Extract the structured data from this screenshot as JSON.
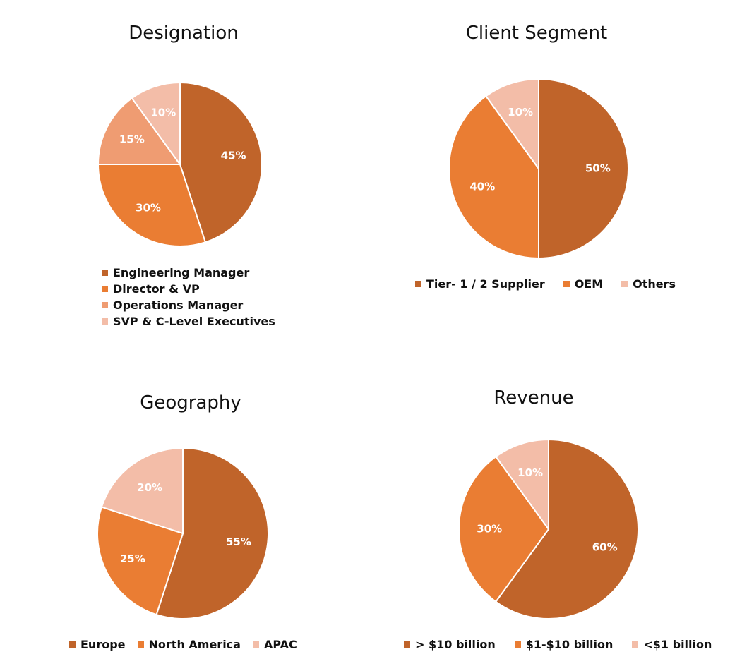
{
  "chart_data": [
    {
      "type": "pie",
      "title": "Designation",
      "categories": [
        "Engineering Manager",
        "Director & VP",
        "Operations Manager",
        "SVP & C-Level Executives"
      ],
      "values": [
        45,
        30,
        15,
        10
      ],
      "labels": [
        "45%",
        "30%",
        "15%",
        "10%"
      ],
      "colors": [
        "#C0642A",
        "#EA7D33",
        "#EF9C72",
        "#F3BDA8"
      ],
      "legend_position": "bottom-vertical"
    },
    {
      "type": "pie",
      "title": "Client Segment",
      "categories": [
        "Tier- 1 / 2 Supplier",
        "OEM",
        "Others"
      ],
      "values": [
        50,
        40,
        10
      ],
      "labels": [
        "50%",
        "40%",
        "10%"
      ],
      "colors": [
        "#C0642A",
        "#EA7D33",
        "#F3BDA8"
      ],
      "legend_position": "bottom"
    },
    {
      "type": "pie",
      "title": "Geography",
      "categories": [
        "Europe",
        "North America",
        "APAC"
      ],
      "values": [
        55,
        25,
        20
      ],
      "labels": [
        "55%",
        "25%",
        "20%"
      ],
      "colors": [
        "#C0642A",
        "#EA7D33",
        "#F3BDA8"
      ],
      "legend_position": "bottom"
    },
    {
      "type": "pie",
      "title": "Revenue",
      "categories": [
        "> $10 billion",
        "$1-$10 billion",
        "<$1 billion"
      ],
      "values": [
        60,
        30,
        10
      ],
      "labels": [
        "60%",
        "30%",
        "10%"
      ],
      "colors": [
        "#C0642A",
        "#EA7D33",
        "#F3BDA8"
      ],
      "legend_position": "bottom"
    }
  ]
}
